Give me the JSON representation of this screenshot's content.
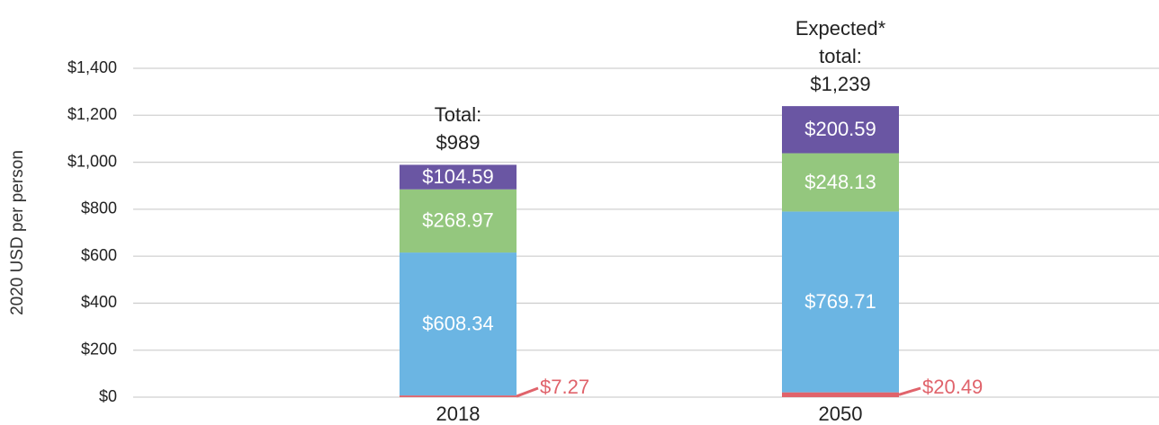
{
  "chart_data": {
    "type": "stacked_bar",
    "y_label": "2020 USD per person",
    "categories": [
      "2018",
      "2050"
    ],
    "series": [
      {
        "color": "#e0636b",
        "values": [
          7.27,
          20.49
        ],
        "value_labels": [
          "$7.27",
          "$20.49"
        ]
      },
      {
        "color": "#6bb5e3",
        "values": [
          608.34,
          769.71
        ],
        "value_labels": [
          "$608.34",
          "$769.71"
        ]
      },
      {
        "color": "#94c77e",
        "values": [
          268.97,
          248.13
        ],
        "value_labels": [
          "$268.97",
          "$248.13"
        ]
      },
      {
        "color": "#6a56a3",
        "values": [
          104.59,
          200.59
        ],
        "value_labels": [
          "$104.59",
          "$200.59"
        ]
      }
    ],
    "total_labels": [
      [
        "Total:",
        "$989"
      ],
      [
        "Expected*",
        "total:",
        "$1,239"
      ]
    ],
    "ylim": [
      0,
      1400
    ],
    "yticks": [
      {
        "value": 0,
        "label": "$0"
      },
      {
        "value": 200,
        "label": "$200"
      },
      {
        "value": 400,
        "label": "$400"
      },
      {
        "value": 600,
        "label": "$600"
      },
      {
        "value": 800,
        "label": "$800"
      },
      {
        "value": 1000,
        "label": "$1,000"
      },
      {
        "value": 1200,
        "label": "$1,200"
      },
      {
        "value": 1400,
        "label": "$1,400"
      }
    ],
    "grid": true
  }
}
